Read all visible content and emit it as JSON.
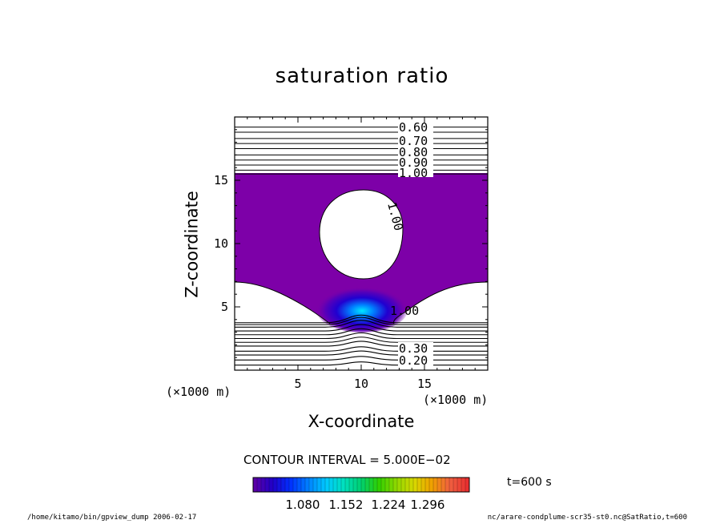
{
  "chart_data": {
    "type": "contour",
    "title": "saturation ratio",
    "xlabel": "X-coordinate",
    "ylabel": "Z-coordinate",
    "x_unit_label": "(×1000 m)",
    "y_unit_label": "(×1000 m)",
    "xlim": [
      0,
      20
    ],
    "ylim": [
      0,
      20
    ],
    "x_ticks": [
      5,
      10,
      15
    ],
    "y_ticks": [
      5,
      10,
      15
    ],
    "contour_interval_text": "CONTOUR INTERVAL = 5.000E−02",
    "contour_labels_upper": [
      "0.60",
      "0.70",
      "0.80",
      "0.90",
      "1.00"
    ],
    "contour_labels_lower": [
      "0.20",
      "0.30"
    ],
    "contour_labels_other": [
      "1.00",
      "1.00"
    ],
    "upper_contour_levels_z": [
      19.2,
      18.8,
      18.3,
      17.9,
      17.5,
      17.0,
      16.6,
      16.2,
      15.8,
      15.5
    ],
    "lower_contour_levels_z": [
      0.4,
      0.8,
      1.2,
      1.5,
      1.9,
      2.2,
      2.5,
      2.8,
      3.1,
      3.4,
      3.6,
      3.75
    ],
    "cloud_fill_color": "#7d00a8",
    "colorbar": {
      "tick_labels": [
        "1.080",
        "1.152",
        "1.224",
        "1.296"
      ],
      "colors": [
        "#5a00a8",
        "#2000c8",
        "#0030ff",
        "#0080ff",
        "#00c8ff",
        "#00e0c0",
        "#00d070",
        "#30d000",
        "#90d800",
        "#d8d800",
        "#f0a000",
        "#f06040",
        "#e83030"
      ]
    },
    "time_label": "t=600 s"
  },
  "footer": {
    "left": "/home/kitamo/bin/gpview_dump  2006-02-17",
    "right": "nc/arare-condplume-scr35-st0.nc@SatRatio,t=600"
  }
}
